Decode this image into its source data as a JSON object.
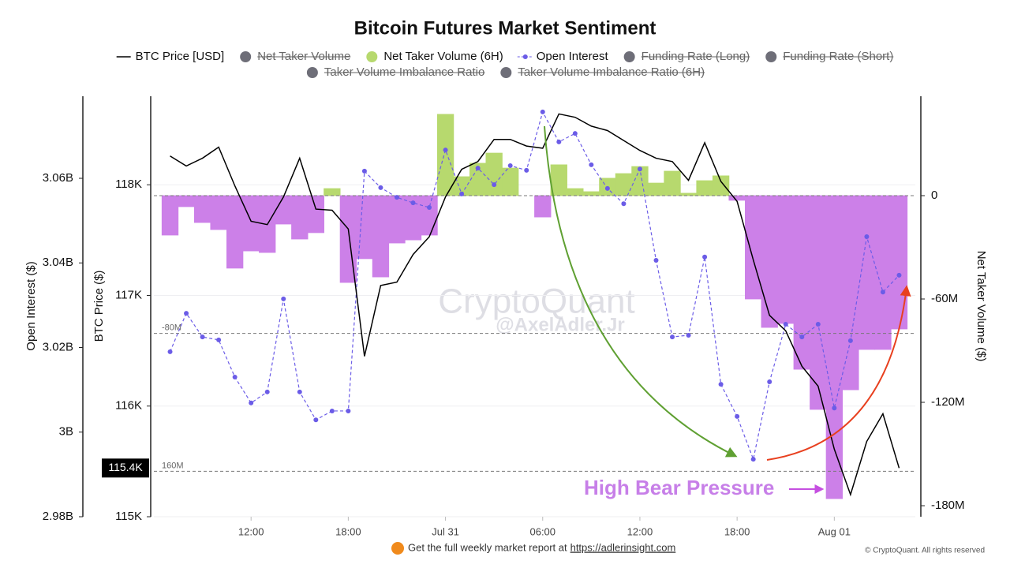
{
  "chart_data": {
    "type": "combo",
    "title": "Bitcoin Futures Market Sentiment",
    "x": [
      7,
      8,
      9,
      10,
      11,
      12,
      13,
      14,
      15,
      16,
      17,
      18,
      19,
      20,
      21,
      22,
      23,
      24,
      25,
      26,
      27,
      28,
      29,
      30,
      31,
      32,
      33,
      34,
      35,
      36,
      37,
      38,
      39,
      40,
      41,
      42,
      43,
      44,
      45,
      46,
      47,
      48,
      49,
      50,
      51,
      52
    ],
    "xlim": [
      6,
      53
    ],
    "xticks": [
      {
        "value": 12,
        "label": "12:00"
      },
      {
        "value": 18,
        "label": "18:00"
      },
      {
        "value": 24,
        "label": "Jul 31"
      },
      {
        "value": 30,
        "label": "06:00"
      },
      {
        "value": 36,
        "label": "12:00"
      },
      {
        "value": 42,
        "label": "18:00"
      },
      {
        "value": 48,
        "label": "Aug 01"
      }
    ],
    "ylabel": "BTC Price ($)",
    "ylim": [
      115000,
      118800
    ],
    "yticks": [
      {
        "value": 115000,
        "label": "115K"
      },
      {
        "value": 116000,
        "label": "116K"
      },
      {
        "value": 117000,
        "label": "117K"
      },
      {
        "value": 118000,
        "label": "118K"
      }
    ],
    "y2label": "Net Taker Volume ($)",
    "y2lim": [
      -186.4,
      57.7
    ],
    "y2ticks": [
      {
        "value": -180,
        "label": "-180M"
      },
      {
        "value": -120,
        "label": "-120M"
      },
      {
        "value": -60,
        "label": "-60M"
      },
      0
    ],
    "y3label": "Open Interest ($)",
    "y3lim": [
      2.98,
      3.0794
    ],
    "y3ticks": [
      {
        "value": 2.98,
        "label": "2.98B"
      },
      {
        "value": 3,
        "label": "3B"
      },
      {
        "value": 3.02,
        "label": "3.02B"
      },
      {
        "value": 3.04,
        "label": "3.04B"
      },
      {
        "value": 3.06,
        "label": "3.06B"
      }
    ],
    "grid": true,
    "ref_lines": [
      {
        "value": 0
      },
      {
        "value": -80,
        "label": "-80M"
      },
      {
        "value": -160,
        "label": "160M"
      }
    ],
    "series": [
      {
        "name": "BTC Price [USD]",
        "type": "line",
        "axis": "y",
        "color": "#000000",
        "last_value_label": "115.4K",
        "values": [
          118260,
          118170,
          118240,
          118340,
          117990,
          117670,
          117640,
          117890,
          118240,
          117780,
          117770,
          117600,
          116450,
          117090,
          117120,
          117370,
          117530,
          117890,
          118140,
          118210,
          118410,
          118410,
          118350,
          118330,
          118640,
          118610,
          118530,
          118490,
          118400,
          118310,
          118240,
          118210,
          118040,
          118380,
          118030,
          117850,
          117320,
          116820,
          116680,
          116360,
          116180,
          115610,
          115200,
          115680,
          115930,
          115440
        ]
      },
      {
        "name": "Net Taker Volume",
        "hidden": true,
        "color": "#6e6e78"
      },
      {
        "name": "Net Taker Volume (6H)",
        "type": "step-bar",
        "axis": "y2",
        "color": "#b7d96e",
        "negative_color": "#cc80e8",
        "values": [
          -22.9,
          -6.4,
          -15.6,
          -19.7,
          -42.1,
          -32.1,
          -33.0,
          -16.5,
          -25.2,
          -21.5,
          4.1,
          -50.4,
          -36.6,
          -47.2,
          -27.5,
          -25.7,
          -22.9,
          47.2,
          11.0,
          18.8,
          24.7,
          16.0,
          0,
          -12.4,
          17.9,
          4.1,
          2.3,
          10.1,
          12.8,
          16.9,
          7.3,
          14.2,
          1.4,
          8.7,
          11.5,
          -2.7,
          -60,
          -76.5,
          -74.2,
          -100.8,
          -124.1,
          -175.9,
          -112.7,
          -89.3,
          -89.3,
          -77.4
        ]
      },
      {
        "name": "Open Interest",
        "type": "dotted-line",
        "axis": "y3",
        "color": "#6b5ce7",
        "values": [
          3.019,
          3.0281,
          3.0225,
          3.0218,
          3.013,
          3.0069,
          3.0095,
          3.0315,
          3.0095,
          3.0029,
          3.005,
          3.005,
          3.0617,
          3.0578,
          3.0555,
          3.0542,
          3.0531,
          3.0667,
          3.0563,
          3.0624,
          3.0585,
          3.063,
          3.0619,
          3.0757,
          3.0686,
          3.0706,
          3.0632,
          3.0576,
          3.054,
          3.0622,
          3.0406,
          3.0225,
          3.0229,
          3.0414,
          3.0113,
          3.0037,
          2.9936,
          3.0119,
          3.0255,
          3.0225,
          3.0255,
          3.0057,
          3.0216,
          3.0462,
          3.0331,
          3.0371
        ]
      },
      {
        "name": "Funding Rate (Long)",
        "hidden": true,
        "color": "#6e6e78"
      },
      {
        "name": "Funding Rate (Short)",
        "hidden": true,
        "color": "#6e6e78"
      },
      {
        "name": "Taker Volume Imbalance Ratio",
        "hidden": true,
        "color": "#6e6e78"
      },
      {
        "name": "Taker Volume Imbalance Ratio (6H)",
        "hidden": true,
        "color": "#6e6e78"
      }
    ],
    "annotation": "High Bear Pressure",
    "watermark": [
      "CryptoQuant",
      "@AxelAdler.Jr"
    ],
    "footer": {
      "text": "Get the full weekly market report at",
      "link": "https://adlerinsight.com"
    },
    "copyright": "© CryptoQuant. All rights reserved"
  }
}
